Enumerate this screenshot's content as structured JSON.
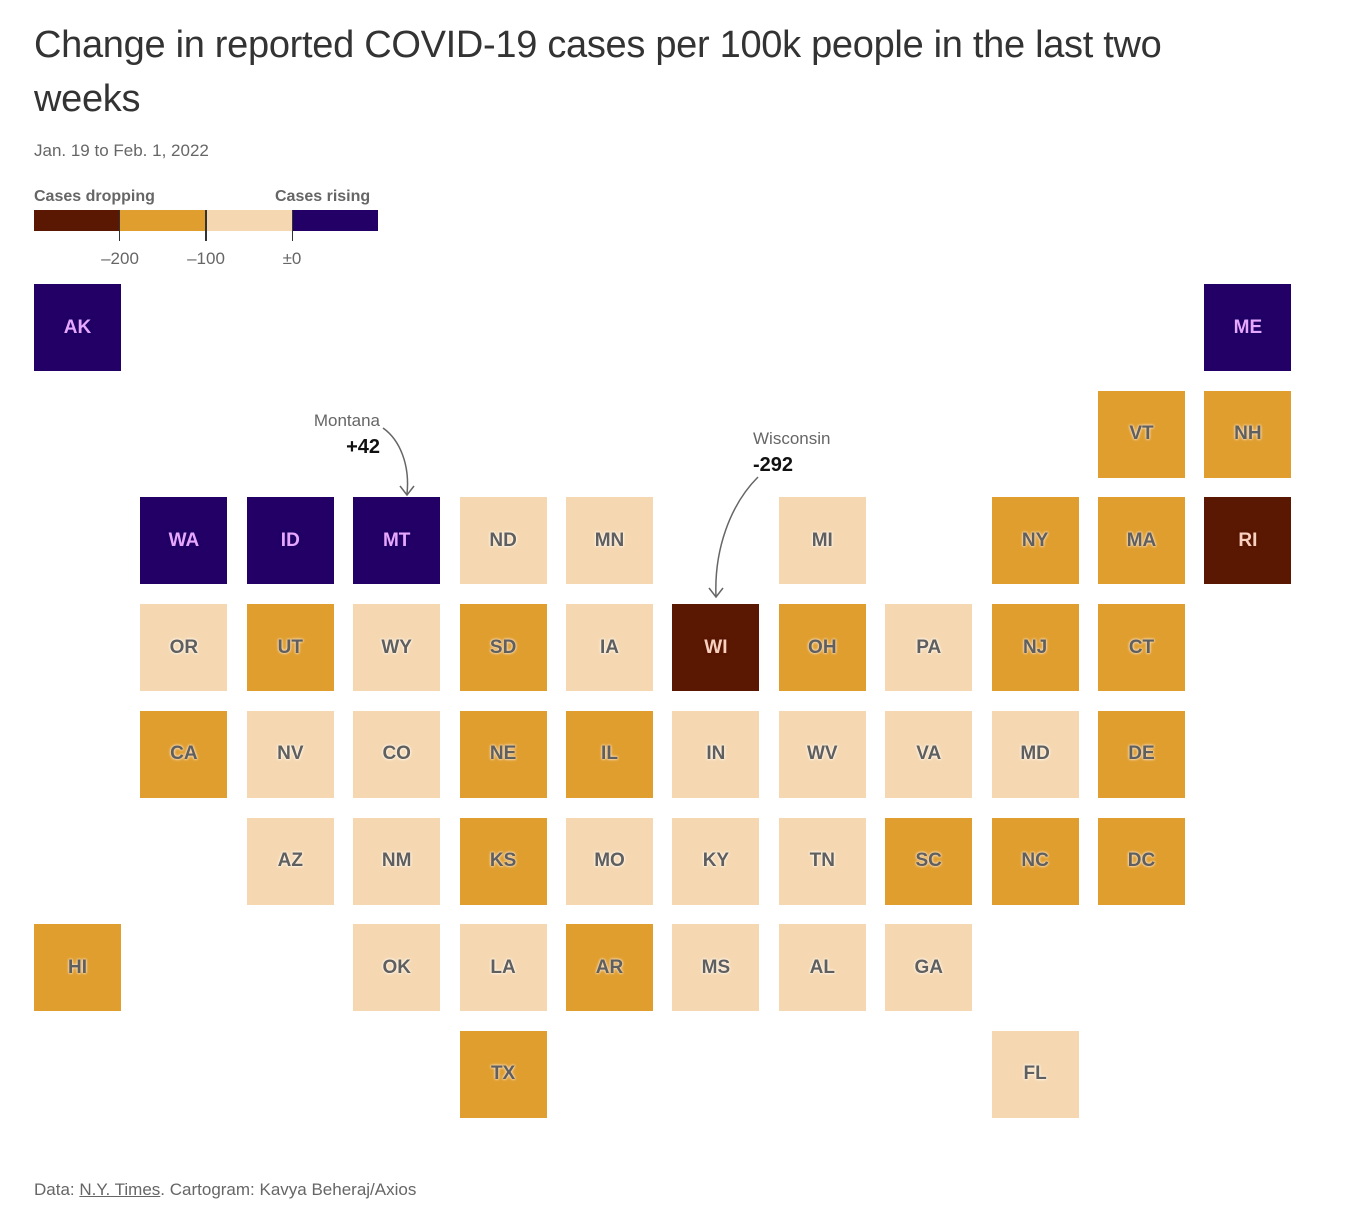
{
  "title": "Change in reported COVID-19 cases per 100k people in the last two weeks",
  "subtitle": "Jan. 19 to Feb. 1, 2022",
  "legend": {
    "left_label": "Cases dropping",
    "right_label": "Cases rising",
    "bins": [
      {
        "range": "< -200",
        "color": "#5a1802"
      },
      {
        "range": "-200 to -100",
        "color": "#e09e2e"
      },
      {
        "range": "-100 to 0",
        "color": "#f5d8b2"
      },
      {
        "range": "> 0",
        "color": "#220066"
      }
    ],
    "ticks": [
      "–200",
      "–100",
      "±0"
    ]
  },
  "annotations": [
    {
      "name": "Montana",
      "value": "+42",
      "state": "MT"
    },
    {
      "name": "Wisconsin",
      "value": "-292",
      "state": "WI"
    }
  ],
  "footer": {
    "prefix": "Data: ",
    "source": "N.Y. Times",
    "suffix": ". Cartogram: Kavya Beheraj/Axios"
  },
  "chart_data": {
    "type": "heatmap",
    "title": "Change in reported COVID-19 cases per 100k people in the last two weeks",
    "subtitle": "Jan. 19 to Feb. 1, 2022",
    "bin_labels": [
      "< -200",
      "-200 to -100",
      "-100 to 0",
      "> 0"
    ],
    "states": [
      {
        "code": "AK",
        "bin": 3
      },
      {
        "code": "ME",
        "bin": 3
      },
      {
        "code": "VT",
        "bin": 1
      },
      {
        "code": "NH",
        "bin": 1
      },
      {
        "code": "WA",
        "bin": 3
      },
      {
        "code": "ID",
        "bin": 3
      },
      {
        "code": "MT",
        "bin": 3,
        "value": 42
      },
      {
        "code": "ND",
        "bin": 2
      },
      {
        "code": "MN",
        "bin": 2
      },
      {
        "code": "MI",
        "bin": 2
      },
      {
        "code": "NY",
        "bin": 1
      },
      {
        "code": "MA",
        "bin": 1
      },
      {
        "code": "RI",
        "bin": 0
      },
      {
        "code": "OR",
        "bin": 2
      },
      {
        "code": "UT",
        "bin": 1
      },
      {
        "code": "WY",
        "bin": 2
      },
      {
        "code": "SD",
        "bin": 1
      },
      {
        "code": "IA",
        "bin": 2
      },
      {
        "code": "WI",
        "bin": 0,
        "value": -292
      },
      {
        "code": "OH",
        "bin": 1
      },
      {
        "code": "PA",
        "bin": 2
      },
      {
        "code": "NJ",
        "bin": 1
      },
      {
        "code": "CT",
        "bin": 1
      },
      {
        "code": "CA",
        "bin": 1
      },
      {
        "code": "NV",
        "bin": 2
      },
      {
        "code": "CO",
        "bin": 2
      },
      {
        "code": "NE",
        "bin": 1
      },
      {
        "code": "IL",
        "bin": 1
      },
      {
        "code": "IN",
        "bin": 2
      },
      {
        "code": "WV",
        "bin": 2
      },
      {
        "code": "VA",
        "bin": 2
      },
      {
        "code": "MD",
        "bin": 2
      },
      {
        "code": "DE",
        "bin": 1
      },
      {
        "code": "AZ",
        "bin": 2
      },
      {
        "code": "NM",
        "bin": 2
      },
      {
        "code": "KS",
        "bin": 1
      },
      {
        "code": "MO",
        "bin": 2
      },
      {
        "code": "KY",
        "bin": 2
      },
      {
        "code": "TN",
        "bin": 2
      },
      {
        "code": "SC",
        "bin": 1
      },
      {
        "code": "NC",
        "bin": 1
      },
      {
        "code": "DC",
        "bin": 1
      },
      {
        "code": "HI",
        "bin": 1
      },
      {
        "code": "OK",
        "bin": 2
      },
      {
        "code": "LA",
        "bin": 2
      },
      {
        "code": "AR",
        "bin": 1
      },
      {
        "code": "MS",
        "bin": 2
      },
      {
        "code": "AL",
        "bin": 2
      },
      {
        "code": "GA",
        "bin": 2
      },
      {
        "code": "TX",
        "bin": 1
      },
      {
        "code": "FL",
        "bin": 2
      }
    ]
  }
}
